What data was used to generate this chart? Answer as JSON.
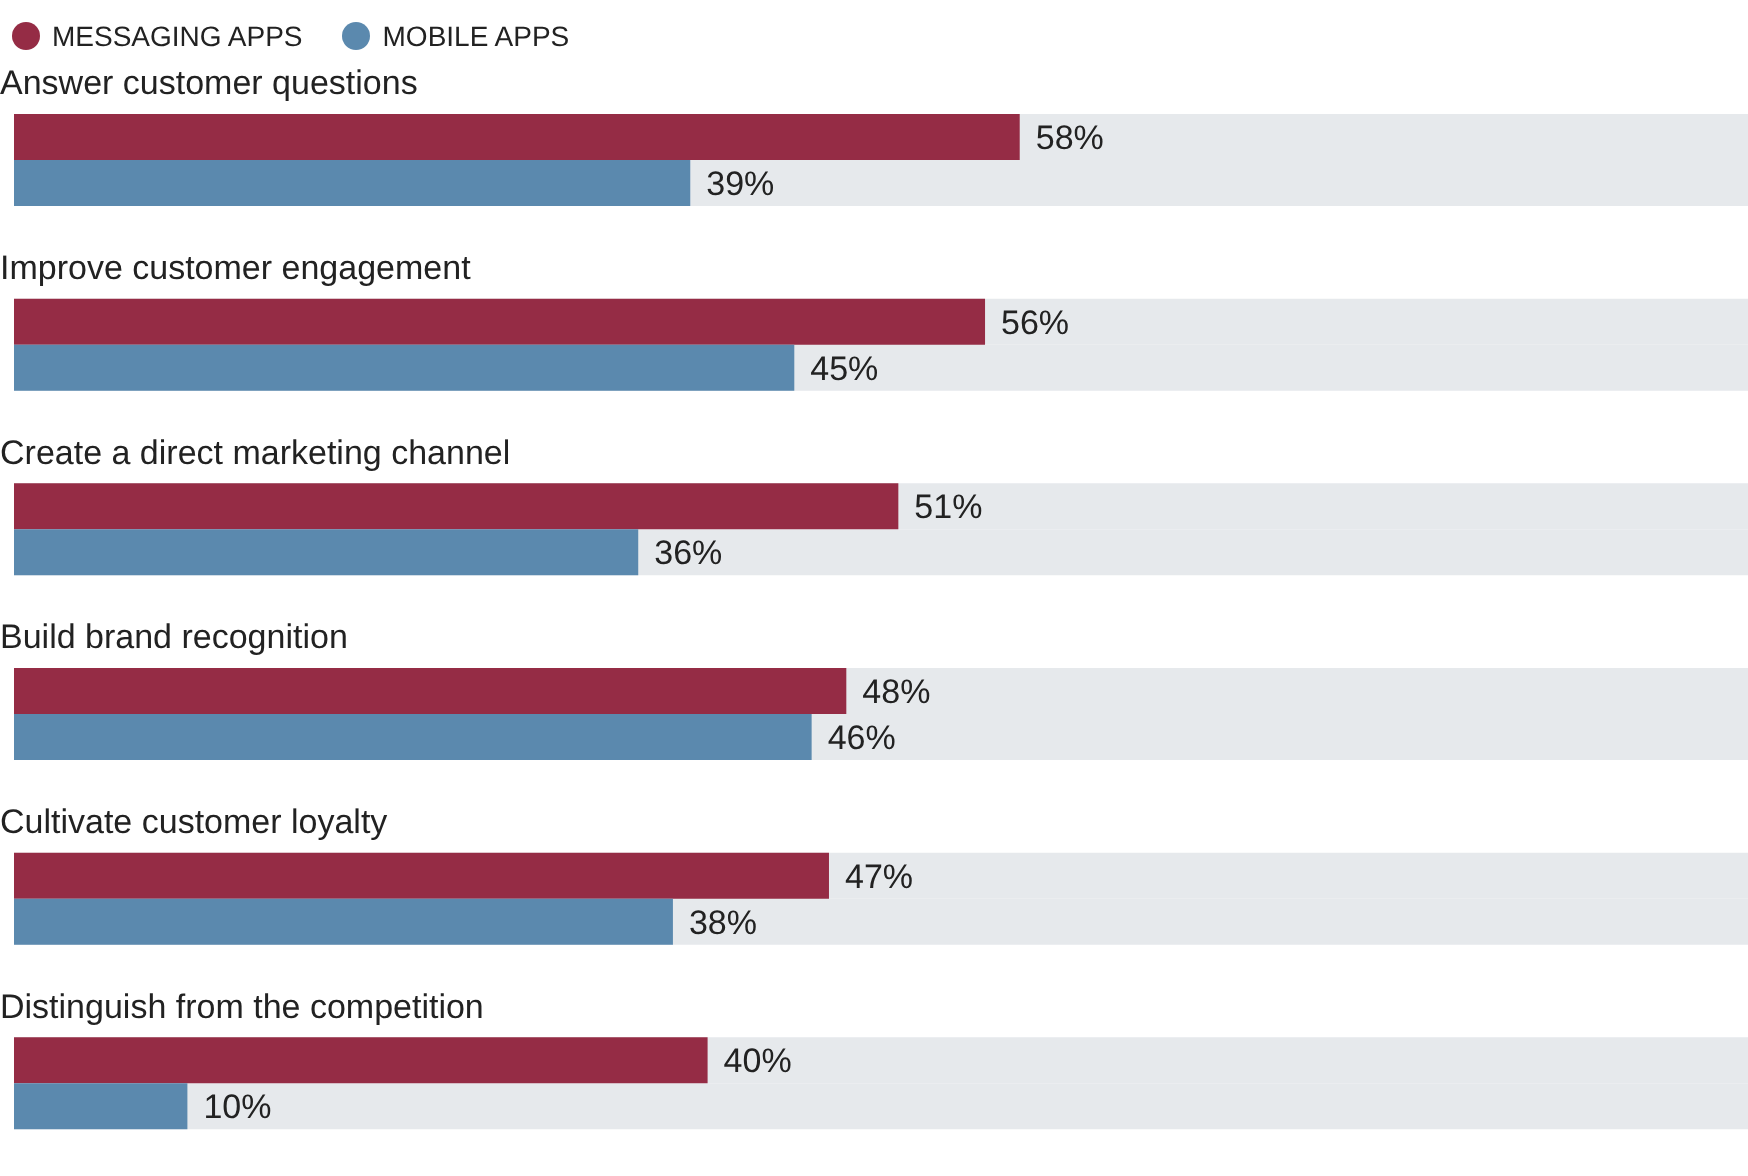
{
  "chart_data": {
    "type": "bar",
    "orientation": "horizontal",
    "categories": [
      "Answer customer questions",
      "Improve customer engagement",
      "Create a direct marketing channel",
      "Build brand recognition",
      "Cultivate customer loyalty",
      "Distinguish from the competition"
    ],
    "series": [
      {
        "name": "MESSAGING APPS",
        "color": "#952c45",
        "values": [
          58,
          56,
          51,
          48,
          47,
          40
        ],
        "value_labels": [
          "58%",
          "56%",
          "51%",
          "48%",
          "47%",
          "40%"
        ]
      },
      {
        "name": "MOBILE APPS",
        "color": "#5b89ae",
        "values": [
          39,
          45,
          36,
          46,
          38,
          10
        ],
        "value_labels": [
          "39%",
          "45%",
          "36%",
          "46%",
          "38%",
          "10%"
        ]
      }
    ],
    "xlim": [
      0,
      100
    ],
    "legend": "top left",
    "grid": false,
    "tick_labels": "y"
  }
}
